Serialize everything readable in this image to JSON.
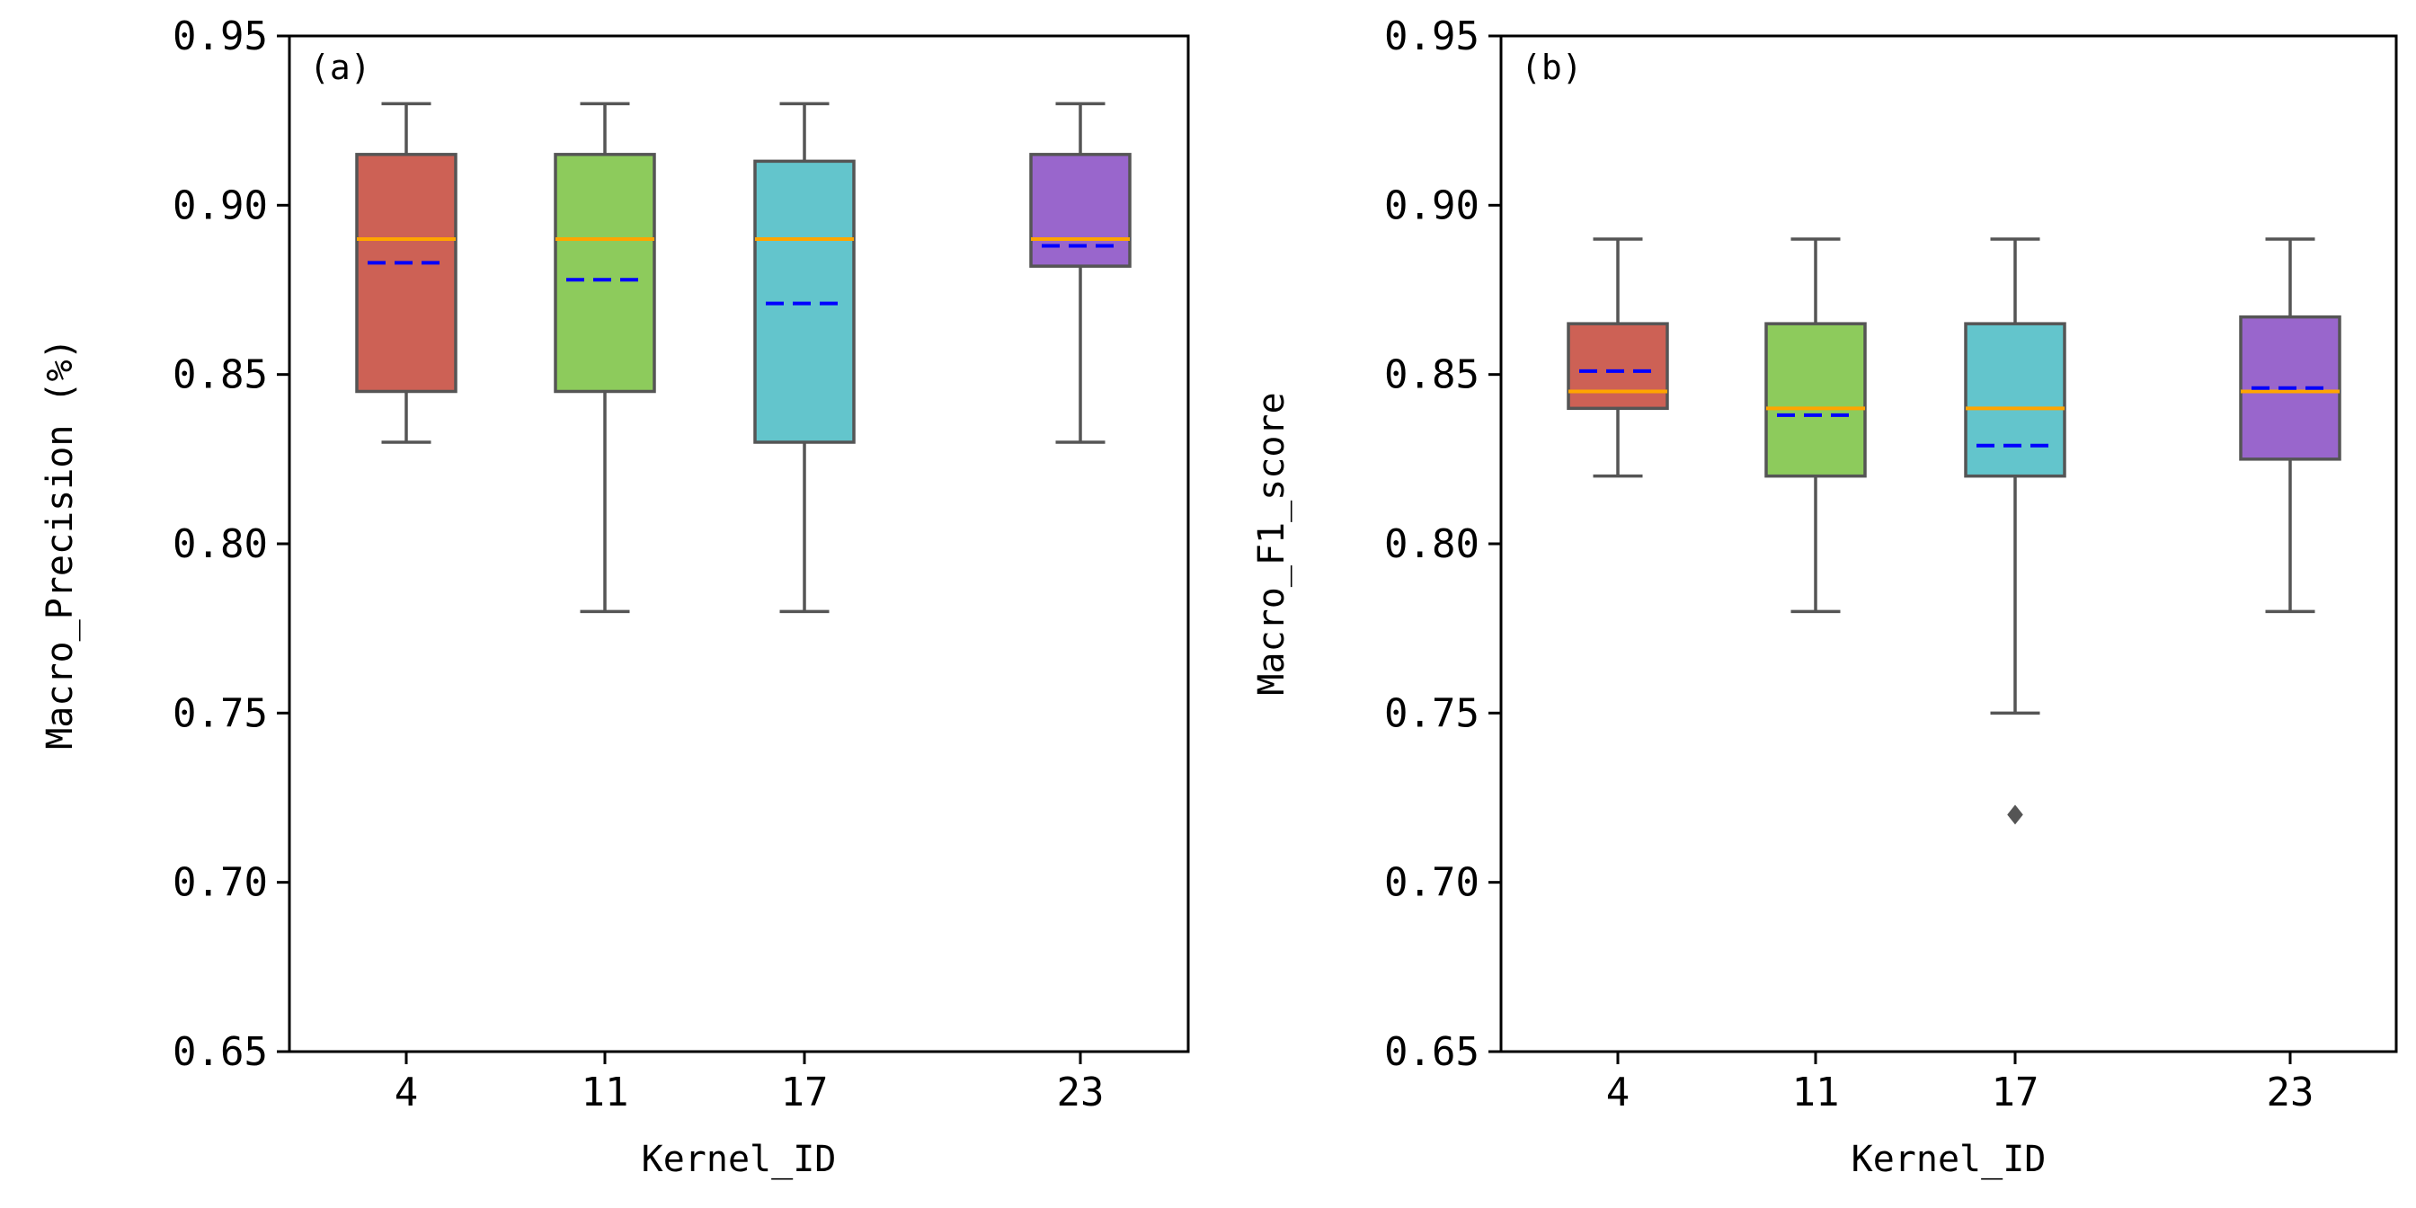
{
  "chart_data": [
    {
      "type": "box",
      "panel_label": "(a)",
      "xlabel": "Kernel_ID",
      "ylabel": "Macro_Precision (%)",
      "ylim": [
        0.65,
        0.95
      ],
      "yticks": [
        0.95,
        0.9,
        0.85,
        0.8,
        0.75,
        0.7,
        0.65
      ],
      "ytick_labels": [
        "0.95",
        "0.90",
        "0.85",
        "0.80",
        "0.75",
        "0.70",
        "0.65"
      ],
      "categories": [
        "4",
        "11",
        "17",
        "23"
      ],
      "boxes": [
        {
          "category": "4",
          "whisker_low": 0.83,
          "q1": 0.845,
          "median": 0.89,
          "mean": 0.883,
          "q3": 0.915,
          "whisker_high": 0.93,
          "outliers": [],
          "color": "#CD6155"
        },
        {
          "category": "11",
          "whisker_low": 0.78,
          "q1": 0.845,
          "median": 0.89,
          "mean": 0.878,
          "q3": 0.915,
          "whisker_high": 0.93,
          "outliers": [],
          "color": "#8DCB5C"
        },
        {
          "category": "17",
          "whisker_low": 0.78,
          "q1": 0.83,
          "median": 0.89,
          "mean": 0.871,
          "q3": 0.913,
          "whisker_high": 0.93,
          "outliers": [],
          "color": "#63C5CC"
        },
        {
          "category": "23",
          "whisker_low": 0.83,
          "q1": 0.882,
          "median": 0.89,
          "mean": 0.888,
          "q3": 0.915,
          "whisker_high": 0.93,
          "outliers": [],
          "color": "#9966CC"
        }
      ]
    },
    {
      "type": "box",
      "panel_label": "(b)",
      "xlabel": "Kernel_ID",
      "ylabel": "Macro_F1_score",
      "ylim": [
        0.65,
        0.95
      ],
      "yticks": [
        0.95,
        0.9,
        0.85,
        0.8,
        0.75,
        0.7,
        0.65
      ],
      "ytick_labels": [
        "0.95",
        "0.90",
        "0.85",
        "0.80",
        "0.75",
        "0.70",
        "0.65"
      ],
      "categories": [
        "4",
        "11",
        "17",
        "23"
      ],
      "boxes": [
        {
          "category": "4",
          "whisker_low": 0.82,
          "q1": 0.84,
          "median": 0.845,
          "mean": 0.851,
          "q3": 0.865,
          "whisker_high": 0.89,
          "outliers": [],
          "color": "#CD6155"
        },
        {
          "category": "11",
          "whisker_low": 0.78,
          "q1": 0.82,
          "median": 0.84,
          "mean": 0.838,
          "q3": 0.865,
          "whisker_high": 0.89,
          "outliers": [],
          "color": "#8DCB5C"
        },
        {
          "category": "17",
          "whisker_low": 0.75,
          "q1": 0.82,
          "median": 0.84,
          "mean": 0.829,
          "q3": 0.865,
          "whisker_high": 0.89,
          "outliers": [
            0.72
          ],
          "color": "#63C5CC"
        },
        {
          "category": "23",
          "whisker_low": 0.78,
          "q1": 0.825,
          "median": 0.845,
          "mean": 0.846,
          "q3": 0.867,
          "whisker_high": 0.89,
          "outliers": [],
          "color": "#9966CC"
        }
      ]
    }
  ],
  "style": {
    "median_color": "#FFA500",
    "mean_color": "#0000FF",
    "whisker_color": "#555555",
    "frame_color": "#000000"
  }
}
